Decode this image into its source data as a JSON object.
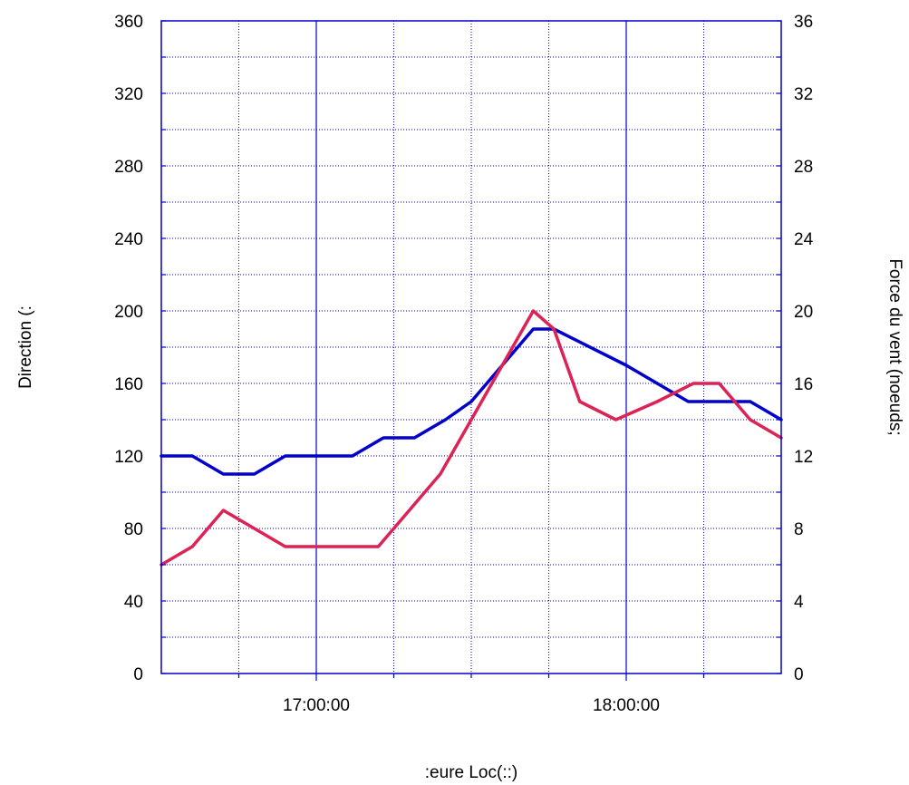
{
  "chart_data": {
    "type": "line",
    "xlabel": ":eure Loc(::)",
    "ylabel_left": "Direction (:",
    "ylabel_right": "Force du vent (noeuds;",
    "x_ticks_major": [
      "17:00:00",
      "18:00:00"
    ],
    "x_range": [
      "16:30:00",
      "18:30:00"
    ],
    "y_left_range": [
      0,
      360
    ],
    "y_left_ticks": [
      0,
      40,
      80,
      120,
      160,
      200,
      240,
      280,
      320,
      360
    ],
    "y_right_range": [
      0,
      36
    ],
    "y_right_ticks": [
      0,
      4,
      8,
      12,
      16,
      20,
      24,
      28,
      32,
      36
    ],
    "grid": true,
    "series": [
      {
        "axis": "left",
        "color": "#0000cc",
        "x": [
          "16:30:00",
          "16:36:00",
          "16:42:00",
          "16:48:00",
          "16:54:00",
          "17:00:00",
          "17:07:00",
          "17:13:00",
          "17:19:00",
          "17:25:00",
          "17:30:00",
          "17:42:00",
          "17:46:00",
          "18:00:00",
          "18:12:00",
          "18:18:00",
          "18:24:00",
          "18:30:00"
        ],
        "values": [
          120,
          120,
          110,
          110,
          120,
          120,
          120,
          130,
          130,
          140,
          150,
          190,
          190,
          170,
          150,
          150,
          150,
          140
        ]
      },
      {
        "axis": "right",
        "color": "#dd2255",
        "x": [
          "16:30:00",
          "16:36:00",
          "16:42:00",
          "16:48:00",
          "16:54:00",
          "17:00:00",
          "17:12:00",
          "17:18:00",
          "17:24:00",
          "17:42:00",
          "17:46:00",
          "17:51:00",
          "17:58:00",
          "18:06:00",
          "18:13:00",
          "18:18:00",
          "18:24:00",
          "18:30:00"
        ],
        "values": [
          6,
          7,
          9,
          8,
          7,
          7,
          7,
          9,
          11,
          20,
          19,
          15,
          14,
          15,
          16,
          16,
          14,
          13
        ]
      }
    ]
  }
}
